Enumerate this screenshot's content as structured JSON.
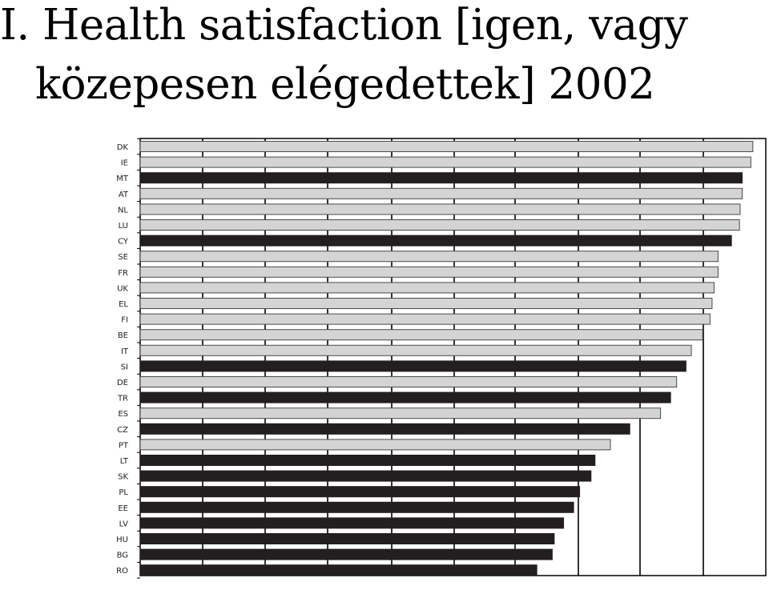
{
  "title": {
    "line1": "I. Health satisfaction [igen, vagy",
    "line2": "közepesen elégedettek] 2002"
  },
  "colors": {
    "dark_bar": "#231f20",
    "light_bar": "#d4d4d4",
    "light_bar_stroke": "#4a4a4a",
    "axis": "#000000"
  },
  "chart_data": {
    "type": "bar",
    "orientation": "horizontal",
    "grid": true,
    "xlim": [
      0,
      100
    ],
    "categories": [
      "DK",
      "IE",
      "MT",
      "AT",
      "NL",
      "LU",
      "CY",
      "SE",
      "FR",
      "UK",
      "EL",
      "FI",
      "BE",
      "IT",
      "SI",
      "DE",
      "TR",
      "ES",
      "CZ",
      "PT",
      "LT",
      "SK",
      "PL",
      "EE",
      "LV",
      "HU",
      "BG",
      "RO"
    ],
    "values": [
      91.6,
      91.3,
      90.0,
      90.0,
      89.7,
      89.6,
      88.4,
      86.4,
      86.4,
      85.8,
      85.5,
      85.2,
      84.1,
      82.4,
      81.6,
      80.2,
      79.3,
      77.8,
      73.2,
      70.3,
      68.0,
      67.4,
      65.7,
      64.8,
      63.3,
      61.9,
      61.6,
      59.3
    ],
    "group": [
      "light",
      "light",
      "dark",
      "light",
      "light",
      "light",
      "dark",
      "light",
      "light",
      "light",
      "light",
      "light",
      "light",
      "light",
      "dark",
      "light",
      "dark",
      "light",
      "dark",
      "light",
      "dark",
      "dark",
      "dark",
      "dark",
      "dark",
      "dark",
      "dark",
      "dark"
    ]
  }
}
